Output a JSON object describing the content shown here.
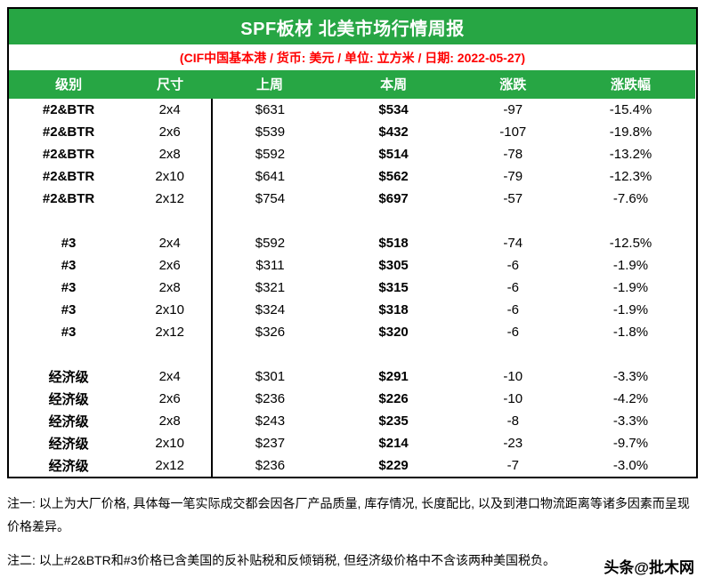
{
  "report": {
    "title": "SPF板材 北美市场行情周报",
    "subtitle": "(CIF中国基本港 / 货币: 美元 / 单位: 立方米 / 日期: 2022-05-27)"
  },
  "table": {
    "columns": [
      "级别",
      "尺寸",
      "上周",
      "本周",
      "涨跌",
      "涨跌幅"
    ],
    "rows": [
      [
        "#2&BTR",
        "2x4",
        "$631",
        "$534",
        "-97",
        "-15.4%"
      ],
      [
        "#2&BTR",
        "2x6",
        "$539",
        "$432",
        "-107",
        "-19.8%"
      ],
      [
        "#2&BTR",
        "2x8",
        "$592",
        "$514",
        "-78",
        "-13.2%"
      ],
      [
        "#2&BTR",
        "2x10",
        "$641",
        "$562",
        "-79",
        "-12.3%"
      ],
      [
        "#2&BTR",
        "2x12",
        "$754",
        "$697",
        "-57",
        "-7.6%"
      ],
      [],
      [
        "#3",
        "2x4",
        "$592",
        "$518",
        "-74",
        "-12.5%"
      ],
      [
        "#3",
        "2x6",
        "$311",
        "$305",
        "-6",
        "-1.9%"
      ],
      [
        "#3",
        "2x8",
        "$321",
        "$315",
        "-6",
        "-1.9%"
      ],
      [
        "#3",
        "2x10",
        "$324",
        "$318",
        "-6",
        "-1.9%"
      ],
      [
        "#3",
        "2x12",
        "$326",
        "$320",
        "-6",
        "-1.8%"
      ],
      [],
      [
        "经济级",
        "2x4",
        "$301",
        "$291",
        "-10",
        "-3.3%"
      ],
      [
        "经济级",
        "2x6",
        "$236",
        "$226",
        "-10",
        "-4.2%"
      ],
      [
        "经济级",
        "2x8",
        "$243",
        "$235",
        "-8",
        "-3.3%"
      ],
      [
        "经济级",
        "2x10",
        "$237",
        "$214",
        "-23",
        "-9.7%"
      ],
      [
        "经济级",
        "2x12",
        "$236",
        "$229",
        "-7",
        "-3.0%"
      ]
    ]
  },
  "notes": [
    "注一: 以上为大厂价格, 具体每一笔实际成交都会因各厂产品质量, 库存情况, 长度配比, 以及到港口物流距离等诸多因素而呈现价格差异。",
    "注二: 以上#2&BTR和#3价格已含美国的反补贴税和反倾销税, 但经济级价格中不含该两种美国税负。"
  ],
  "watermark": "头条@批木网",
  "colors": {
    "header_green": "#27A644",
    "subtitle_red": "#FF0000",
    "border_black": "#000000"
  }
}
